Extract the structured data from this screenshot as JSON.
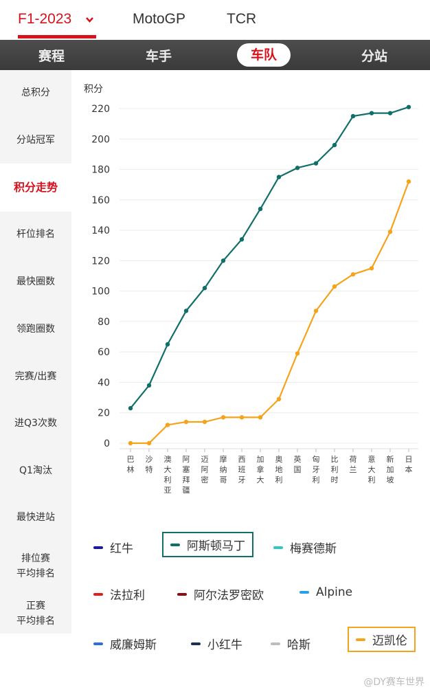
{
  "top_tabs": [
    "F1-2023",
    "MotoGP",
    "TCR"
  ],
  "sub_tabs": [
    "赛程",
    "车手",
    "车队",
    "分站"
  ],
  "sidebar": [
    "总积分",
    "分站冠军",
    "积分走势",
    "杆位排名",
    "最快圈数",
    "领跑圈数",
    "完赛/出赛",
    "进Q3次数",
    "Q1淘汰",
    "最快进站",
    "排位赛\n平均排名",
    "正赛\n平均排名"
  ],
  "legend": [
    {
      "name": "红牛",
      "color": "#1a1aa8"
    },
    {
      "name": "阿斯顿马丁",
      "color": "#116f6a"
    },
    {
      "name": "梅赛德斯",
      "color": "#2fc9c2"
    },
    {
      "name": "法拉利",
      "color": "#e0201b"
    },
    {
      "name": "阿尔法罗密欧",
      "color": "#8a0f14"
    },
    {
      "name": "Alpine",
      "color": "#2aa0e8"
    },
    {
      "name": "威廉姆斯",
      "color": "#2d6fd6"
    },
    {
      "name": "小红牛",
      "color": "#1c2f55"
    },
    {
      "name": "哈斯",
      "color": "#bdbdbd"
    },
    {
      "name": "迈凯伦",
      "color": "#f4a31a"
    }
  ],
  "watermark": "@DY赛车世界",
  "chart_data": {
    "type": "line",
    "ylabel": "积分",
    "ylim": [
      0,
      220
    ],
    "yticks": [
      0,
      20,
      40,
      60,
      80,
      100,
      120,
      140,
      160,
      180,
      200,
      220
    ],
    "categories": [
      "巴林",
      "沙特",
      "澳大利亚",
      "阿塞拜疆",
      "迈阿密",
      "摩纳哥",
      "西班牙",
      "加拿大",
      "奥地利",
      "英国",
      "匈牙利",
      "比利时",
      "荷兰",
      "意大利",
      "新加坡",
      "日本"
    ],
    "series": [
      {
        "name": "阿斯顿马丁",
        "color": "#116f6a",
        "values": [
          23,
          38,
          65,
          87,
          102,
          120,
          134,
          154,
          175,
          181,
          184,
          196,
          215,
          217,
          217,
          221
        ]
      },
      {
        "name": "迈凯伦",
        "color": "#f4a31a",
        "values": [
          0,
          0,
          12,
          14,
          14,
          17,
          17,
          17,
          29,
          59,
          87,
          103,
          111,
          115,
          139,
          172
        ]
      }
    ]
  }
}
